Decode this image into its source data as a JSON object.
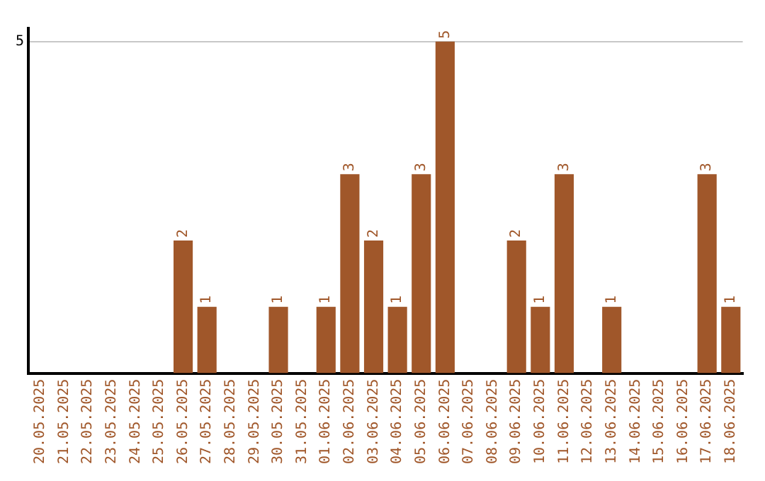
{
  "chart_data": {
    "type": "bar",
    "categories": [
      "20.05.2025",
      "21.05.2025",
      "22.05.2025",
      "23.05.2025",
      "24.05.2025",
      "25.05.2025",
      "26.05.2025",
      "27.05.2025",
      "28.05.2025",
      "29.05.2025",
      "30.05.2025",
      "31.05.2025",
      "01.06.2025",
      "02.06.2025",
      "03.06.2025",
      "04.06.2025",
      "05.06.2025",
      "06.06.2025",
      "07.06.2025",
      "08.06.2025",
      "09.06.2025",
      "10.06.2025",
      "11.06.2025",
      "12.06.2025",
      "13.06.2025",
      "14.06.2025",
      "15.06.2025",
      "16.06.2025",
      "17.06.2025",
      "18.06.2025"
    ],
    "values": [
      0,
      0,
      0,
      0,
      0,
      0,
      2,
      1,
      0,
      0,
      1,
      0,
      1,
      3,
      2,
      1,
      3,
      5,
      0,
      0,
      2,
      1,
      3,
      0,
      1,
      0,
      0,
      0,
      3,
      1
    ],
    "value_labels": [
      null,
      null,
      null,
      null,
      null,
      null,
      "2",
      "1",
      null,
      null,
      "1",
      null,
      "1",
      "3",
      "2",
      "1",
      "3",
      "5",
      null,
      null,
      "2",
      "1",
      "3",
      null,
      "1",
      null,
      null,
      null,
      "3",
      "1"
    ],
    "color": "#a0572a",
    "ylim": [
      0,
      5.2
    ],
    "yticks": [
      5
    ],
    "grid": "y"
  }
}
